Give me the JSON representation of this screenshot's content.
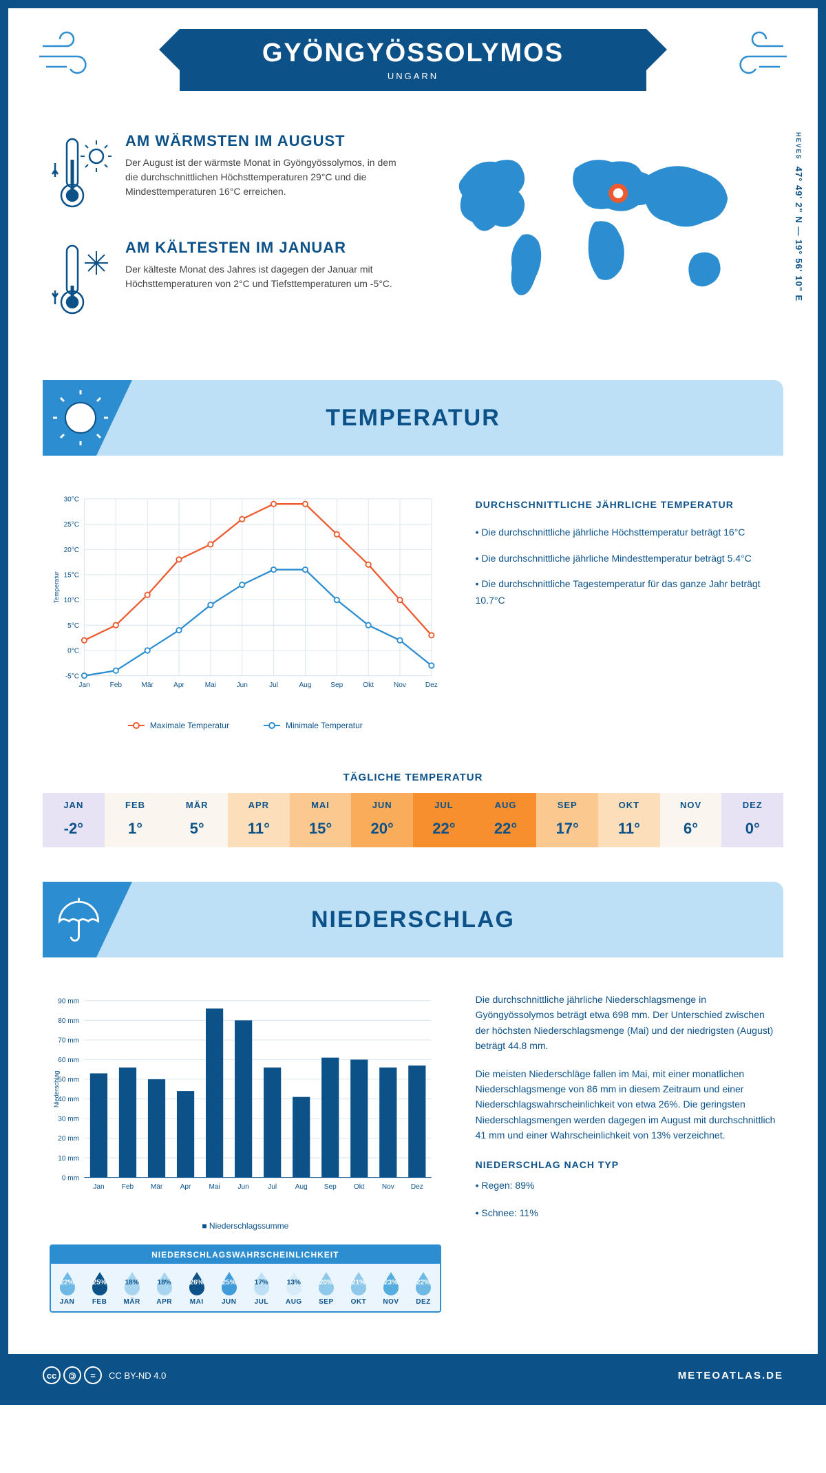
{
  "header": {
    "city": "GYÖNGYÖSSOLYMOS",
    "country": "UNGARN"
  },
  "coords": {
    "region": "HEVES",
    "lat": "47° 49' 2\" N",
    "sep": " — ",
    "lon": "19° 56' 10\" E"
  },
  "warmest": {
    "title": "AM WÄRMSTEN IM AUGUST",
    "text": "Der August ist der wärmste Monat in Gyöngyössolymos, in dem die durchschnittlichen Höchsttemperaturen 29°C und die Mindesttemperaturen 16°C erreichen."
  },
  "coldest": {
    "title": "AM KÄLTESTEN IM JANUAR",
    "text": "Der kälteste Monat des Jahres ist dagegen der Januar mit Höchsttemperaturen von 2°C und Tiefsttemperaturen um -5°C."
  },
  "temperature": {
    "section_title": "TEMPERATUR",
    "ylabel": "Temperatur",
    "ylim": [
      -5,
      30
    ],
    "ytick_step": 5,
    "months": [
      "Jan",
      "Feb",
      "Mär",
      "Apr",
      "Mai",
      "Jun",
      "Jul",
      "Aug",
      "Sep",
      "Okt",
      "Nov",
      "Dez"
    ],
    "max_series": {
      "label": "Maximale Temperatur",
      "color": "#ec5a2e",
      "values": [
        2,
        5,
        11,
        18,
        21,
        26,
        29,
        29,
        23,
        17,
        10,
        3
      ]
    },
    "min_series": {
      "label": "Minimale Temperatur",
      "color": "#2c8ed1",
      "values": [
        -5,
        -4,
        0,
        4,
        9,
        13,
        16,
        16,
        10,
        5,
        2,
        -3
      ]
    },
    "grid_color": "#d7e4ee",
    "summary_title": "DURCHSCHNITTLICHE JÄHRLICHE TEMPERATUR",
    "summary_points": [
      "• Die durchschnittliche jährliche Höchsttemperatur beträgt 16°C",
      "• Die durchschnittliche jährliche Mindesttemperatur beträgt 5.4°C",
      "• Die durchschnittliche Tagestemperatur für das ganze Jahr beträgt 10.7°C"
    ]
  },
  "daily": {
    "title": "TÄGLICHE TEMPERATUR",
    "months": [
      "JAN",
      "FEB",
      "MÄR",
      "APR",
      "MAI",
      "JUN",
      "JUL",
      "AUG",
      "SEP",
      "OKT",
      "NOV",
      "DEZ"
    ],
    "values": [
      "-2°",
      "1°",
      "5°",
      "11°",
      "15°",
      "20°",
      "22°",
      "22°",
      "17°",
      "11°",
      "6°",
      "0°"
    ],
    "colors": [
      "#e7e3f4",
      "#faf5ee",
      "#faf5ee",
      "#fcdfba",
      "#fbc990",
      "#f9ac59",
      "#f78f2f",
      "#f78f2f",
      "#fbc990",
      "#fcdfba",
      "#faf5ee",
      "#e7e3f4"
    ]
  },
  "precipitation": {
    "section_title": "NIEDERSCHLAG",
    "ylabel": "Niederschlag",
    "unit_suffix": " mm",
    "ylim": [
      0,
      90
    ],
    "ytick_step": 10,
    "months": [
      "Jan",
      "Feb",
      "Mär",
      "Apr",
      "Mai",
      "Jun",
      "Jul",
      "Aug",
      "Sep",
      "Okt",
      "Nov",
      "Dez"
    ],
    "values": [
      53,
      56,
      50,
      44,
      86,
      80,
      56,
      41,
      61,
      60,
      56,
      57
    ],
    "bar_color": "#0c5289",
    "grid_color": "#d7e4ee",
    "legend_label": "Niederschlagssumme",
    "text_p1": "Die durchschnittliche jährliche Niederschlagsmenge in Gyöngyössolymos beträgt etwa 698 mm. Der Unterschied zwischen der höchsten Niederschlagsmenge (Mai) und der niedrigsten (August) beträgt 44.8 mm.",
    "text_p2": "Die meisten Niederschläge fallen im Mai, mit einer monatlichen Niederschlagsmenge von 86 mm in diesem Zeitraum und einer Niederschlagswahrscheinlichkeit von etwa 26%. Die geringsten Niederschlagsmengen werden dagegen im August mit durchschnittlich 41 mm und einer Wahrscheinlichkeit von 13% verzeichnet.",
    "type_title": "NIEDERSCHLAG NACH TYP",
    "type_points": [
      "• Regen: 89%",
      "• Schnee: 11%"
    ]
  },
  "probability": {
    "title": "NIEDERSCHLAGSWAHRSCHEINLICHKEIT",
    "months": [
      "JAN",
      "FEB",
      "MÄR",
      "APR",
      "MAI",
      "JUN",
      "JUL",
      "AUG",
      "SEP",
      "OKT",
      "NOV",
      "DEZ"
    ],
    "values": [
      "22%",
      "25%",
      "18%",
      "18%",
      "26%",
      "25%",
      "17%",
      "13%",
      "20%",
      "21%",
      "23%",
      "22%"
    ],
    "fill_colors": [
      "#6eb8e6",
      "#0c5289",
      "#a7d4ef",
      "#a7d4ef",
      "#0c5289",
      "#3f9bd9",
      "#bde0f7",
      "#d7ecf9",
      "#8ec8ea",
      "#8ec8ea",
      "#55acdf",
      "#6eb8e6"
    ],
    "text_colors": [
      "#fff",
      "#fff",
      "#0c5289",
      "#0c5289",
      "#fff",
      "#fff",
      "#0c5289",
      "#0c5289",
      "#fff",
      "#fff",
      "#fff",
      "#fff"
    ]
  },
  "footer": {
    "license": "CC BY-ND 4.0",
    "brand": "METEOATLAS.DE"
  },
  "palette": {
    "primary": "#0c5289",
    "accent": "#2c8ed1",
    "lightblue": "#bde0f7"
  }
}
